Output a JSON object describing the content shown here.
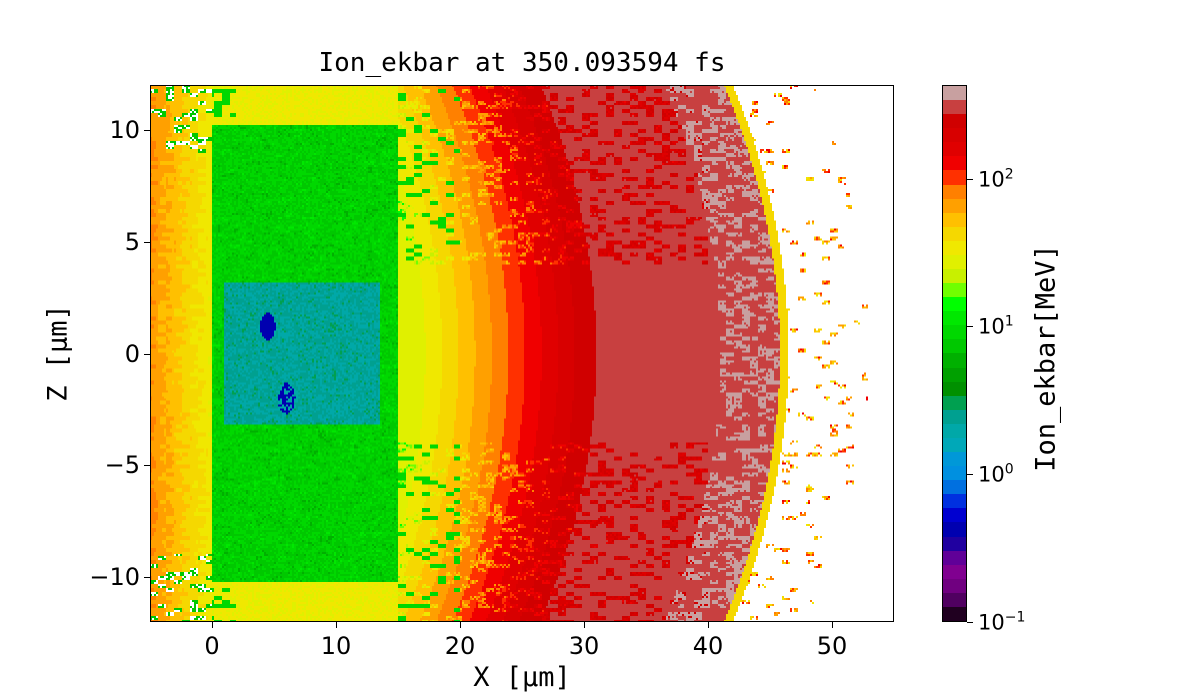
{
  "chart_data": {
    "type": "heatmap",
    "title": "Ion_ekbar at 350.093594 fs",
    "xlabel": "X [μm]",
    "ylabel": "Z [μm]",
    "xlim": [
      -5,
      55
    ],
    "ylim": [
      -12,
      12
    ],
    "xticks": [
      "0",
      "10",
      "20",
      "30",
      "40",
      "50"
    ],
    "xtick_values": [
      0,
      10,
      20,
      30,
      40,
      50
    ],
    "yticks": [
      "−10",
      "−5",
      "0",
      "5",
      "10"
    ],
    "ytick_values": [
      -10,
      -5,
      0,
      5,
      10
    ],
    "grid": false,
    "colorbar": {
      "label": "Ion_ekbar[MeV]",
      "scale": "log",
      "range": [
        0.1,
        430
      ],
      "ticks": [
        {
          "base": "10",
          "exp": "−1",
          "value": 0.1
        },
        {
          "base": "10",
          "exp": "0",
          "value": 1
        },
        {
          "base": "10",
          "exp": "1",
          "value": 10
        },
        {
          "base": "10",
          "exp": "2",
          "value": 100
        }
      ],
      "colors_top_to_bottom": [
        "#c8a0a0",
        "#c84040",
        "#d00000",
        "#d80000",
        "#e00000",
        "#f00000",
        "#ff3000",
        "#ff8000",
        "#ffa000",
        "#ffc000",
        "#f5d800",
        "#f0e800",
        "#e0f000",
        "#c8f000",
        "#70ff00",
        "#00ff00",
        "#00e800",
        "#00d800",
        "#00c800",
        "#00b000",
        "#00a000",
        "#009000",
        "#00a050",
        "#00a090",
        "#00a8a8",
        "#00a8b8",
        "#0098d8",
        "#0090e0",
        "#0070e0",
        "#0030e0",
        "#0000d0",
        "#0000b0",
        "#2000a0",
        "#600098",
        "#800090",
        "#700080",
        "#500060",
        "#200020"
      ]
    }
  }
}
